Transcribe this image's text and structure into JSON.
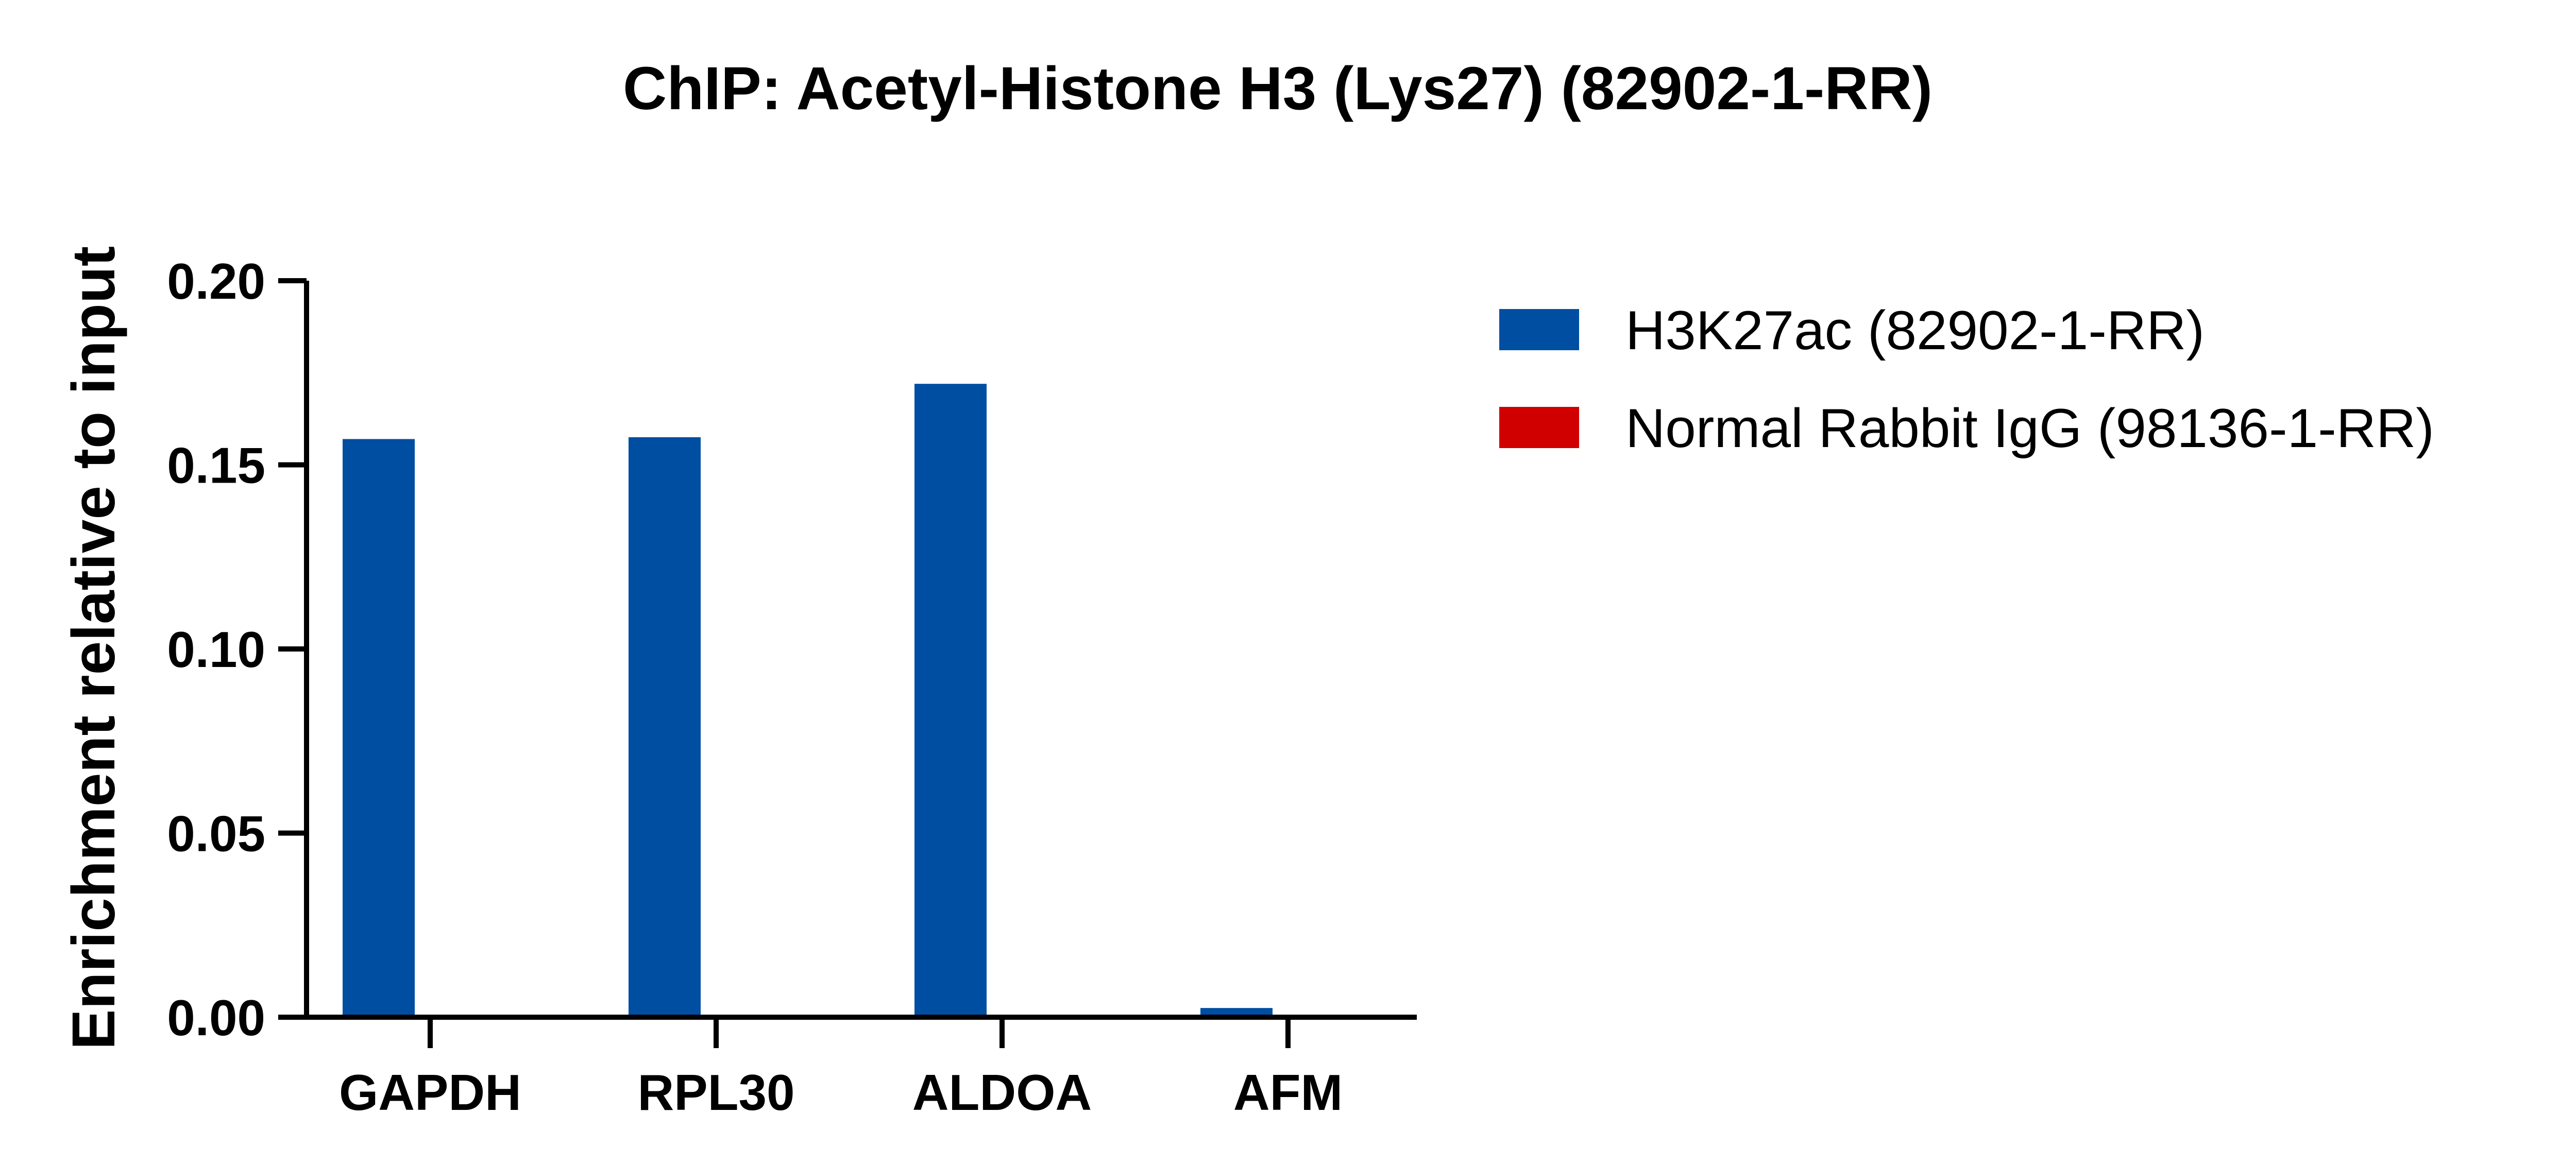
{
  "chart_data": {
    "type": "bar",
    "title": "ChIP: Acetyl-Histone H3 (Lys27) (82902-1-RR)",
    "xlabel": "",
    "ylabel": "Enrichment relative to input",
    "categories": [
      "GAPDH",
      "RPL30",
      "ALDOA",
      "AFM"
    ],
    "series": [
      {
        "name": "H3K27ac (82902-1-RR)",
        "color": "#004EA2",
        "values": [
          0.157,
          0.1575,
          0.172,
          0.0025
        ]
      },
      {
        "name": "Normal Rabbit IgG (98136-1-RR)",
        "color": "#D00000",
        "values": [
          0.0,
          0.0,
          0.0,
          0.0
        ]
      }
    ],
    "ylim": [
      0,
      0.2
    ],
    "yticks": [
      "0.00",
      "0.05",
      "0.10",
      "0.15",
      "0.20"
    ],
    "grid": false,
    "legend": "right"
  }
}
